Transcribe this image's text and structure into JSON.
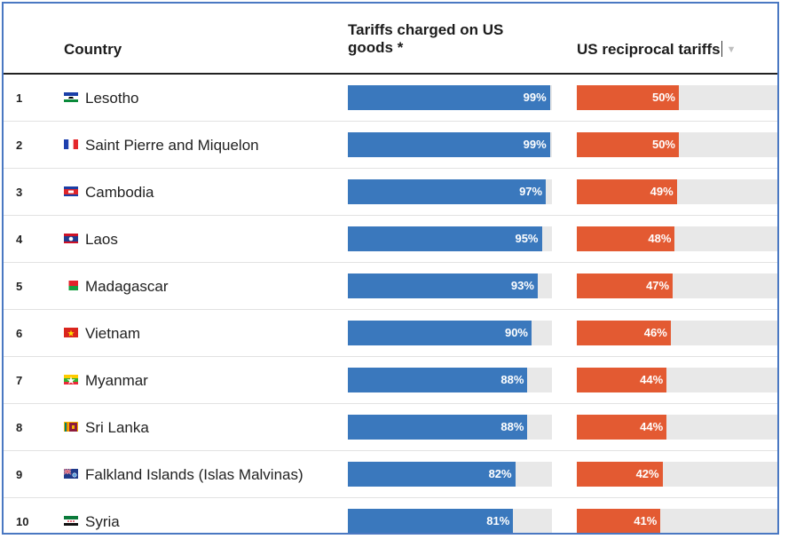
{
  "headers": {
    "country": "Country",
    "tariffs": "Tariffs charged on US goods *",
    "reciprocal": "US reciprocal tariffs",
    "sort_icon": "sort-down-icon"
  },
  "colors": {
    "tariff_bar": "#3a78bd",
    "reciprocal_bar": "#e35a32",
    "track": "#e8e8e8",
    "frame": "#4a78c2"
  },
  "chart_data": {
    "type": "table",
    "columns": [
      "",
      "Country",
      "Tariffs charged on US goods *",
      "US reciprocal tariffs"
    ],
    "rows": [
      {
        "rank": "1",
        "country": "Lesotho",
        "flag": "lesotho",
        "tariff": 99,
        "reciprocal": 50
      },
      {
        "rank": "2",
        "country": "Saint Pierre and Miquelon",
        "flag": "france",
        "tariff": 99,
        "reciprocal": 50
      },
      {
        "rank": "3",
        "country": "Cambodia",
        "flag": "cambodia",
        "tariff": 97,
        "reciprocal": 49
      },
      {
        "rank": "4",
        "country": "Laos",
        "flag": "laos",
        "tariff": 95,
        "reciprocal": 48
      },
      {
        "rank": "5",
        "country": "Madagascar",
        "flag": "madagascar",
        "tariff": 93,
        "reciprocal": 47
      },
      {
        "rank": "6",
        "country": "Vietnam",
        "flag": "vietnam",
        "tariff": 90,
        "reciprocal": 46
      },
      {
        "rank": "7",
        "country": "Myanmar",
        "flag": "myanmar",
        "tariff": 88,
        "reciprocal": 44
      },
      {
        "rank": "8",
        "country": "Sri Lanka",
        "flag": "srilanka",
        "tariff": 88,
        "reciprocal": 44
      },
      {
        "rank": "9",
        "country": "Falkland Islands (Islas Malvinas)",
        "flag": "falklands",
        "tariff": 82,
        "reciprocal": 42
      },
      {
        "rank": "10",
        "country": "Syria",
        "flag": "syria",
        "tariff": 81,
        "reciprocal": 41
      }
    ],
    "value_suffix": "%",
    "xlim": [
      0,
      100
    ]
  }
}
